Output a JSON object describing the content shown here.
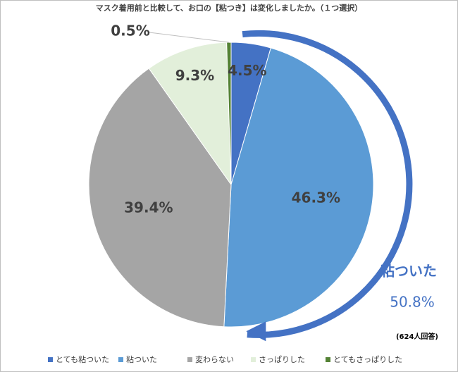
{
  "chart_data": {
    "type": "pie",
    "title": "マスク着用前と比較して、お口の【粘つき】は変化しましたか。（１つ選択）",
    "categories": [
      "とても粘ついた",
      "粘ついた",
      "変わらない",
      "さっぱりした",
      "とてもさっぱりした"
    ],
    "values": [
      4.5,
      46.3,
      39.4,
      9.3,
      0.5
    ],
    "value_labels": [
      "4.5%",
      "46.3%",
      "39.4%",
      "9.3%",
      "0.5%"
    ],
    "colors": [
      "#4472c4",
      "#5b9bd5",
      "#a5a5a5",
      "#e2efda",
      "#548235"
    ],
    "annotation": {
      "text": "粘ついた",
      "value": 50.8,
      "value_label": "50.8%"
    },
    "note": "(624人回答)",
    "legend": "bottom"
  }
}
